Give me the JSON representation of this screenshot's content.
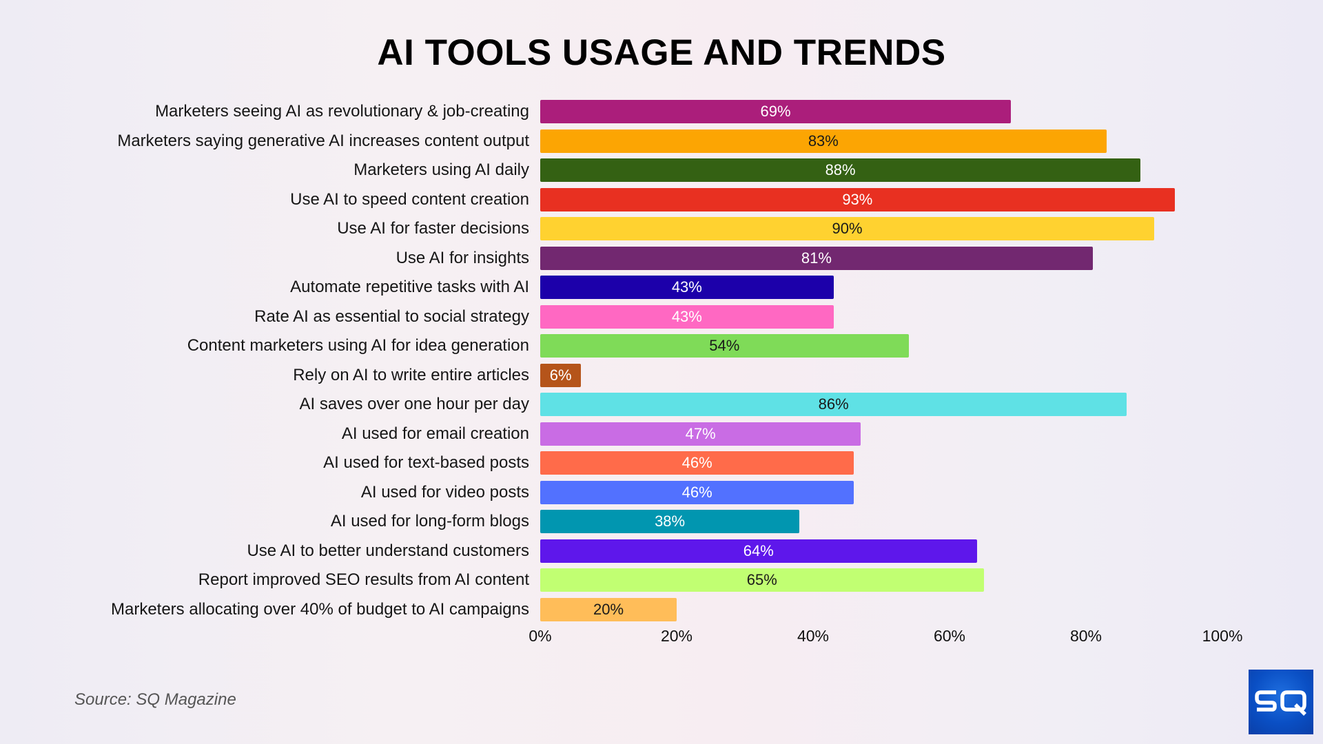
{
  "header": {
    "title": "AI TOOLS USAGE AND TRENDS"
  },
  "footer": {
    "source": "Source: SQ Magazine",
    "logo_text": "SQ"
  },
  "axis": {
    "ticks": [
      "0%",
      "20%",
      "40%",
      "60%",
      "80%",
      "100%"
    ]
  },
  "bars": [
    {
      "label": "Marketers seeing AI as revolutionary & job-creating",
      "value": 69,
      "value_label": "69%",
      "color": "#ab1e7b",
      "text_color": "#ffffff"
    },
    {
      "label": "Marketers saying generative AI increases content output",
      "value": 83,
      "value_label": "83%",
      "color": "#fca503",
      "text_color": "#1a1a1a"
    },
    {
      "label": "Marketers using AI daily",
      "value": 88,
      "value_label": "88%",
      "color": "#346113",
      "text_color": "#ffffff"
    },
    {
      "label": "Use AI to speed content creation",
      "value": 93,
      "value_label": "93%",
      "color": "#e83021",
      "text_color": "#ffffff"
    },
    {
      "label": "Use AI for faster decisions",
      "value": 90,
      "value_label": "90%",
      "color": "#ffd230",
      "text_color": "#1a1a1a"
    },
    {
      "label": "Use AI for insights",
      "value": 81,
      "value_label": "81%",
      "color": "#722870",
      "text_color": "#ffffff"
    },
    {
      "label": "Automate repetitive tasks with AI",
      "value": 43,
      "value_label": "43%",
      "color": "#1c00aa",
      "text_color": "#ffffff"
    },
    {
      "label": "Rate AI as essential to social strategy",
      "value": 43,
      "value_label": "43%",
      "color": "#ff68c2",
      "text_color": "#ffffff"
    },
    {
      "label": "Content marketers using AI for idea generation",
      "value": 54,
      "value_label": "54%",
      "color": "#7fdb58",
      "text_color": "#1a1a1a"
    },
    {
      "label": "Rely on AI to write entire articles",
      "value": 6,
      "value_label": "6%",
      "color": "#b5541a",
      "text_color": "#ffffff"
    },
    {
      "label": "AI saves over one hour per day",
      "value": 86,
      "value_label": "86%",
      "color": "#5fe1e5",
      "text_color": "#1a1a1a"
    },
    {
      "label": "AI used for email creation",
      "value": 47,
      "value_label": "47%",
      "color": "#c96ce4",
      "text_color": "#ffffff"
    },
    {
      "label": "AI used for text-based posts",
      "value": 46,
      "value_label": "46%",
      "color": "#ff6b4a",
      "text_color": "#ffffff"
    },
    {
      "label": "AI used for video posts",
      "value": 46,
      "value_label": "46%",
      "color": "#5271ff",
      "text_color": "#ffffff"
    },
    {
      "label": "AI used for long-form blogs",
      "value": 38,
      "value_label": "38%",
      "color": "#0196b0",
      "text_color": "#ffffff"
    },
    {
      "label": "Use AI to better understand customers",
      "value": 64,
      "value_label": "64%",
      "color": "#5e17eb",
      "text_color": "#ffffff"
    },
    {
      "label": "Report improved SEO results from AI content",
      "value": 65,
      "value_label": "65%",
      "color": "#c1ff72",
      "text_color": "#1a1a1a"
    },
    {
      "label": "Marketers allocating over 40% of budget to AI campaigns",
      "value": 20,
      "value_label": "20%",
      "color": "#ffbd59",
      "text_color": "#1a1a1a"
    }
  ],
  "chart_data": {
    "type": "bar",
    "orientation": "horizontal",
    "title": "AI TOOLS USAGE AND TRENDS",
    "xlabel": "",
    "ylabel": "",
    "xlim": [
      0,
      100
    ],
    "x_ticks": [
      "0%",
      "20%",
      "40%",
      "60%",
      "80%",
      "100%"
    ],
    "grid": false,
    "legend": null,
    "data_labels": true,
    "categories": [
      "Marketers seeing AI as revolutionary & job-creating",
      "Marketers saying generative AI increases content output",
      "Marketers using AI daily",
      "Use AI to speed content creation",
      "Use AI for faster decisions",
      "Use AI for insights",
      "Automate repetitive tasks with AI",
      "Rate AI as essential to social strategy",
      "Content marketers using AI for idea generation",
      "Rely on AI to write entire articles",
      "AI saves over one hour per day",
      "AI used for email creation",
      "AI used for text-based posts",
      "AI used for video posts",
      "AI used for long-form blogs",
      "Use AI to better understand customers",
      "Report improved SEO results from AI content",
      "Marketers allocating over 40% of budget to AI campaigns"
    ],
    "values": [
      69,
      83,
      88,
      93,
      90,
      81,
      43,
      43,
      54,
      6,
      86,
      47,
      46,
      46,
      38,
      64,
      65,
      20
    ],
    "unit": "%",
    "annotation": "Source: SQ Magazine"
  }
}
